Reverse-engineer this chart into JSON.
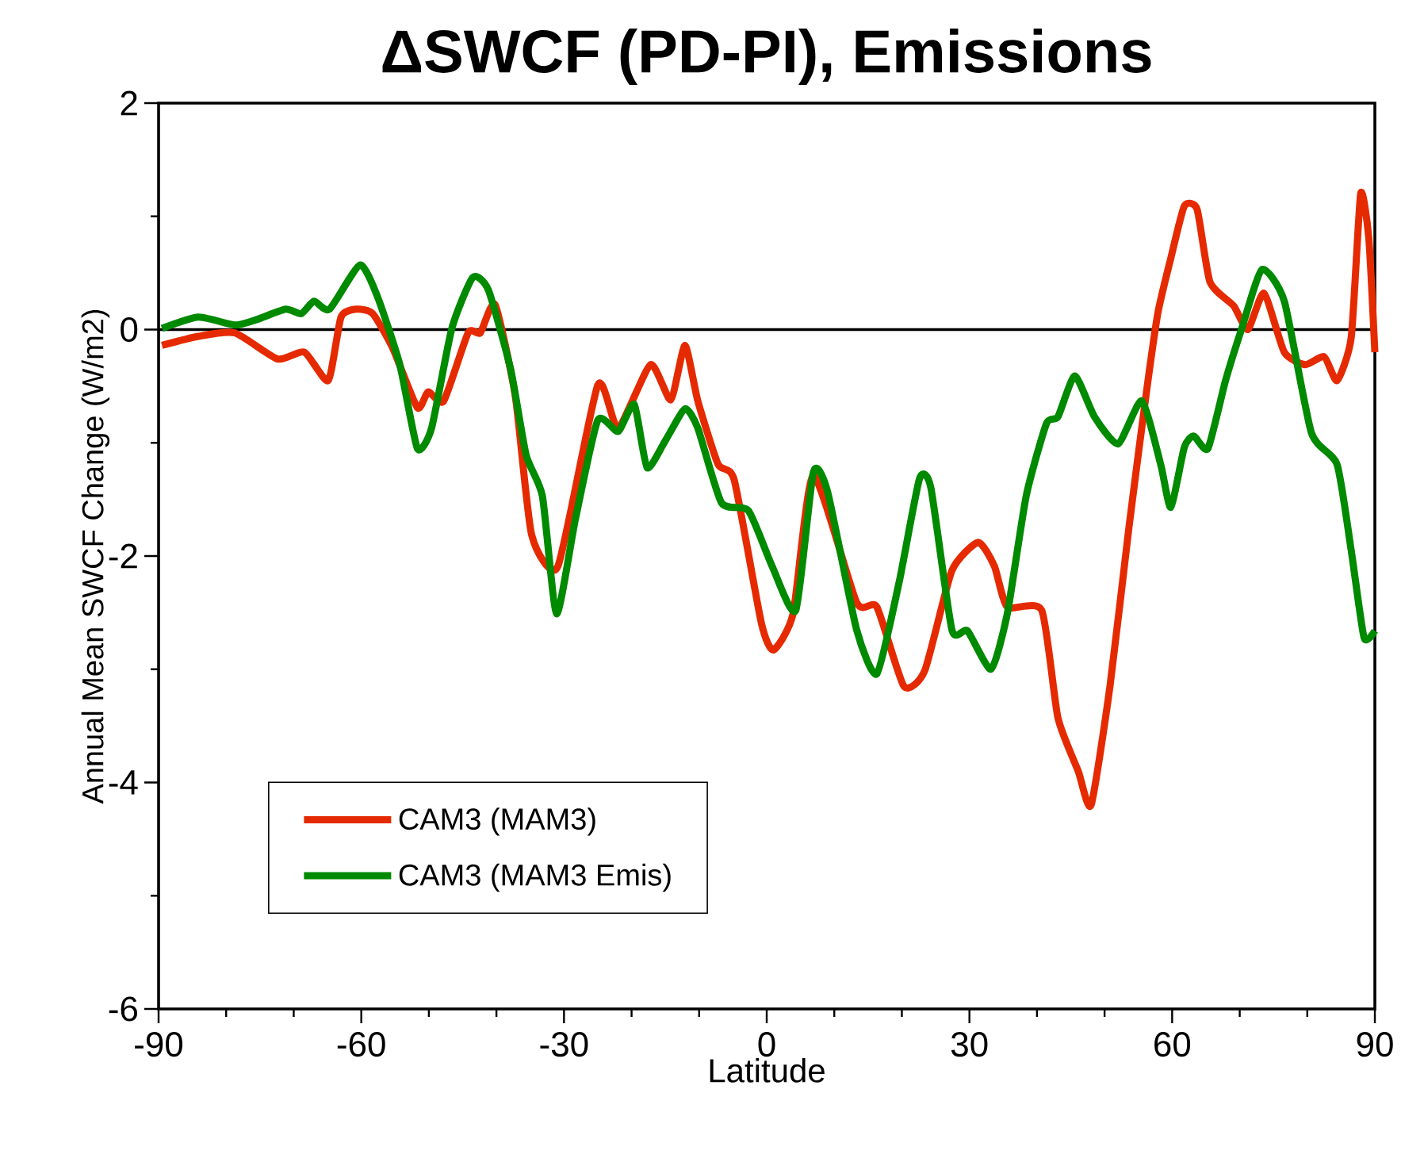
{
  "chart_data": {
    "type": "line",
    "title": "ΔSWCF (PD-PI), Emissions",
    "xlabel": "Latitude",
    "ylabel": "Annual Mean SWCF Change (W/m2)",
    "xlim": [
      -90,
      90
    ],
    "xticks": [
      -90,
      -60,
      -30,
      0,
      30,
      60,
      90
    ],
    "ylim": [
      -6,
      2
    ],
    "yticks": [
      -6,
      -4,
      -2,
      0,
      2
    ],
    "grid": false,
    "legend": "bottom left",
    "marker": "none",
    "line_style": "solid",
    "ref_lines": [
      {
        "axis": "y",
        "value": 0,
        "color": "#000000"
      }
    ],
    "series": [
      {
        "name": "CAM3 (MAM3)",
        "color": "#e62a00",
        "x": [
          -89.5,
          -84.1,
          -78.7,
          -72.4,
          -68.4,
          -64.9,
          -63,
          -60.7,
          -58.3,
          -55.3,
          -51.7,
          -50.1,
          -47.8,
          -44.2,
          -42.4,
          -40.2,
          -37.2,
          -34.8,
          -30.9,
          -25,
          -22,
          -17.2,
          -14.2,
          -12.1,
          -10.2,
          -7.2,
          -4.8,
          -0.8,
          1.0,
          3.9,
          6.9,
          13.3,
          16.3,
          20.3,
          23.4,
          27.4,
          31.3,
          33.7,
          35.6,
          40.7,
          43.1,
          46.1,
          48,
          50.8,
          53.6,
          56.2,
          57.9,
          59.8,
          61.8,
          63.7,
          65.6,
          69.1,
          71.2,
          73.6,
          76.6,
          79.7,
          82.5,
          84.4,
          86.5,
          87.9,
          89.1,
          90
        ],
        "values": [
          -0.14,
          -0.06,
          -0.03,
          -0.26,
          -0.2,
          -0.45,
          0.11,
          0.18,
          0.14,
          -0.17,
          -0.69,
          -0.55,
          -0.63,
          -0.03,
          -0.03,
          0.22,
          -0.59,
          -1.81,
          -2.09,
          -0.49,
          -0.87,
          -0.31,
          -0.62,
          -0.14,
          -0.63,
          -1.19,
          -1.33,
          -2.59,
          -2.83,
          -2.51,
          -1.29,
          -2.41,
          -2.45,
          -3.15,
          -3.01,
          -2.13,
          -1.88,
          -2.09,
          -2.45,
          -2.48,
          -3.43,
          -3.9,
          -4.2,
          -3.15,
          -1.75,
          -0.55,
          0.15,
          0.63,
          1.09,
          1.06,
          0.42,
          0.21,
          0.0,
          0.32,
          -0.2,
          -0.31,
          -0.24,
          -0.45,
          -0.07,
          1.2,
          0.81,
          -0.2
        ]
      },
      {
        "name": "CAM3 (MAM3 Emis)",
        "color": "#008a00",
        "x": [
          -89.5,
          -84.1,
          -78.7,
          -75.4,
          -71.2,
          -68.9,
          -67,
          -64.7,
          -60.2,
          -57.6,
          -54.3,
          -51.7,
          -49.6,
          -46.6,
          -43.5,
          -41.2,
          -37.9,
          -35.6,
          -33.2,
          -31.1,
          -28.3,
          -25,
          -22,
          -19.6,
          -17.7,
          -14.9,
          -12.1,
          -10.2,
          -6.7,
          -2.7,
          0.8,
          4.3,
          6.9,
          9,
          13.3,
          16.3,
          19.6,
          22.6,
          24.3,
          27.4,
          29.7,
          33.2,
          35.6,
          38.4,
          41.4,
          43.1,
          45.6,
          48.5,
          52,
          55.5,
          58.3,
          59.8,
          61.8,
          63.2,
          65.3,
          67.9,
          70.3,
          73.3,
          76.6,
          80.6,
          84.4,
          86.5,
          88.4,
          90
        ],
        "values": [
          0.01,
          0.11,
          0.04,
          0.09,
          0.18,
          0.14,
          0.25,
          0.18,
          0.57,
          0.29,
          -0.31,
          -1.05,
          -0.87,
          0.01,
          0.46,
          0.35,
          -0.35,
          -1.11,
          -1.47,
          -2.51,
          -1.67,
          -0.8,
          -0.9,
          -0.66,
          -1.22,
          -0.97,
          -0.7,
          -0.87,
          -1.53,
          -1.6,
          -2.09,
          -2.48,
          -1.26,
          -1.43,
          -2.65,
          -3.04,
          -2.23,
          -1.32,
          -1.4,
          -2.65,
          -2.66,
          -3.0,
          -2.51,
          -1.47,
          -0.83,
          -0.77,
          -0.41,
          -0.77,
          -1.01,
          -0.63,
          -1.19,
          -1.57,
          -1.04,
          -0.94,
          -1.05,
          -0.45,
          0.01,
          0.53,
          0.25,
          -0.91,
          -1.19,
          -1.95,
          -2.72,
          -2.66
        ]
      }
    ]
  }
}
